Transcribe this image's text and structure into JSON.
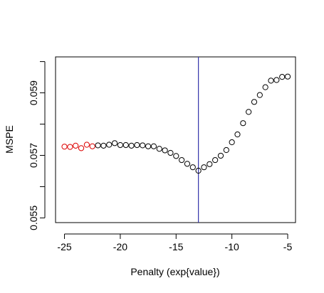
{
  "chart_data": {
    "type": "scatter",
    "title": "",
    "xlabel": "Penalty (exp{value})",
    "ylabel": "MSPE",
    "xlim": [
      -25.8,
      -4.3
    ],
    "ylim": [
      0.05485,
      0.06015
    ],
    "x_ticks": [
      {
        "value": -25,
        "label": "-25"
      },
      {
        "value": -20,
        "label": "-20"
      },
      {
        "value": -15,
        "label": "-15"
      },
      {
        "value": -10,
        "label": "-10"
      },
      {
        "value": -5,
        "label": "-5"
      }
    ],
    "y_ticks": [
      {
        "value": 0.055,
        "label": "0.055",
        "labeled": true
      },
      {
        "value": 0.056,
        "label": "",
        "labeled": false
      },
      {
        "value": 0.057,
        "label": "0.057",
        "labeled": true
      },
      {
        "value": 0.058,
        "label": "",
        "labeled": false
      },
      {
        "value": 0.059,
        "label": "0.059",
        "labeled": true
      },
      {
        "value": 0.06,
        "label": "",
        "labeled": false
      }
    ],
    "grid": false,
    "vline": {
      "x": -13.0,
      "color": "#3333aa"
    },
    "series": [
      {
        "color": "#dd0000",
        "marker": "open-circle",
        "points": [
          [
            -25.0,
            0.05728
          ],
          [
            -24.5,
            0.05727
          ],
          [
            -24.0,
            0.05731
          ],
          [
            -23.5,
            0.05723
          ],
          [
            -23.0,
            0.05734
          ],
          [
            -22.5,
            0.05729
          ]
        ]
      },
      {
        "color": "#000000",
        "marker": "open-circle",
        "points": [
          [
            -22.0,
            0.05732
          ],
          [
            -21.5,
            0.05731
          ],
          [
            -21.0,
            0.05734
          ],
          [
            -20.5,
            0.05739
          ],
          [
            -20.0,
            0.05733
          ],
          [
            -19.5,
            0.05733
          ],
          [
            -19.0,
            0.05731
          ],
          [
            -18.5,
            0.05733
          ],
          [
            -18.0,
            0.05732
          ],
          [
            -17.5,
            0.05729
          ],
          [
            -17.0,
            0.05729
          ],
          [
            -16.5,
            0.05721
          ],
          [
            -16.0,
            0.05716
          ],
          [
            -15.5,
            0.05708
          ],
          [
            -15.0,
            0.05698
          ],
          [
            -14.5,
            0.05685
          ],
          [
            -14.0,
            0.05673
          ],
          [
            -13.5,
            0.05662
          ],
          [
            -13.0,
            0.05651
          ],
          [
            -12.5,
            0.05662
          ],
          [
            -12.0,
            0.05672
          ],
          [
            -11.5,
            0.05685
          ],
          [
            -11.0,
            0.05699
          ],
          [
            -10.5,
            0.05717
          ],
          [
            -10.0,
            0.05742
          ],
          [
            -9.5,
            0.05767
          ],
          [
            -9.0,
            0.05803
          ],
          [
            -8.5,
            0.05839
          ],
          [
            -8.0,
            0.05871
          ],
          [
            -7.5,
            0.05893
          ],
          [
            -7.0,
            0.05918
          ],
          [
            -6.5,
            0.05939
          ],
          [
            -6.0,
            0.05941
          ],
          [
            -5.5,
            0.05951
          ],
          [
            -5.0,
            0.05952
          ]
        ]
      }
    ]
  }
}
